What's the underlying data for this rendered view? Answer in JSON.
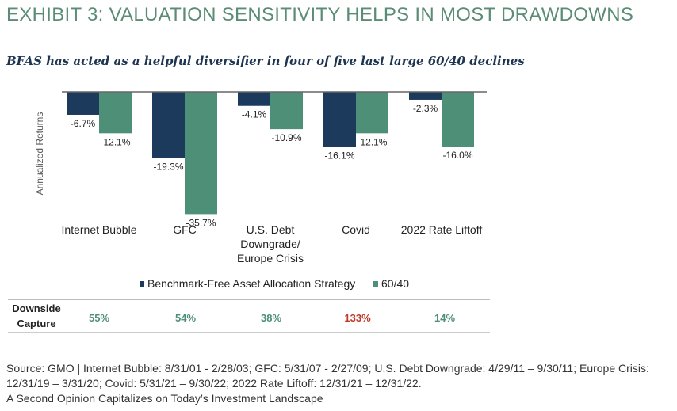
{
  "header": {
    "exhibit_title": "EXHIBIT 3: VALUATION SENSITIVITY HELPS IN MOST DRAWDOWNS",
    "subtitle": "BFAS has acted as a helpful diversifier in four of five last large 60/40 declines"
  },
  "colors": {
    "title": "#5b8c75",
    "benchmark_free": "#1b3a5c",
    "sixty_forty": "#4e8f78",
    "capture_green": "#4e8f78",
    "capture_red": "#c0392b"
  },
  "chart_data": {
    "type": "bar",
    "ylabel": "Annualized Returns",
    "categories": [
      [
        "Internet Bubble"
      ],
      [
        "GFC"
      ],
      [
        "U.S. Debt",
        "Downgrade/",
        "Europe Crisis"
      ],
      [
        "Covid"
      ],
      [
        "2022 Rate Liftoff"
      ]
    ],
    "series": [
      {
        "name": "Benchmark-Free Asset Allocation Strategy",
        "values": [
          -6.7,
          -19.3,
          -4.1,
          -16.1,
          -2.3
        ],
        "labels": [
          "-6.7%",
          "-19.3%",
          "-4.1%",
          "-16.1%",
          "-2.3%"
        ]
      },
      {
        "name": "60/40",
        "values": [
          -12.1,
          -35.7,
          -10.9,
          -12.1,
          -16.0
        ],
        "labels": [
          "-12.1%",
          "-35.7%",
          "-10.9%",
          "-12.1%",
          "-16.0%"
        ]
      }
    ],
    "ylim": [
      -37,
      0
    ],
    "grid": false,
    "legend_position": "bottom"
  },
  "downside_capture": {
    "label_lines": [
      "Downside",
      "Capture"
    ],
    "values": [
      "55%",
      "54%",
      "38%",
      "133%",
      "14%"
    ],
    "highlight": [
      false,
      false,
      false,
      true,
      false
    ]
  },
  "footer": {
    "source_line1": "Source: GMO | Internet Bubble: 8/31/01 - 2/28/03; GFC: 5/31/07 - 2/27/09; U.S. Debt Downgrade: 4/29/11 – 9/30/11; Europe Crisis:",
    "source_line2": "12/31/19 – 3/31/20; Covid: 5/31/21 – 9/30/22; 2022 Rate Liftoff: 12/31/21 – 12/31/22.",
    "source_line3": "A Second Opinion Capitalizes on Today’s Investment Landscape"
  }
}
